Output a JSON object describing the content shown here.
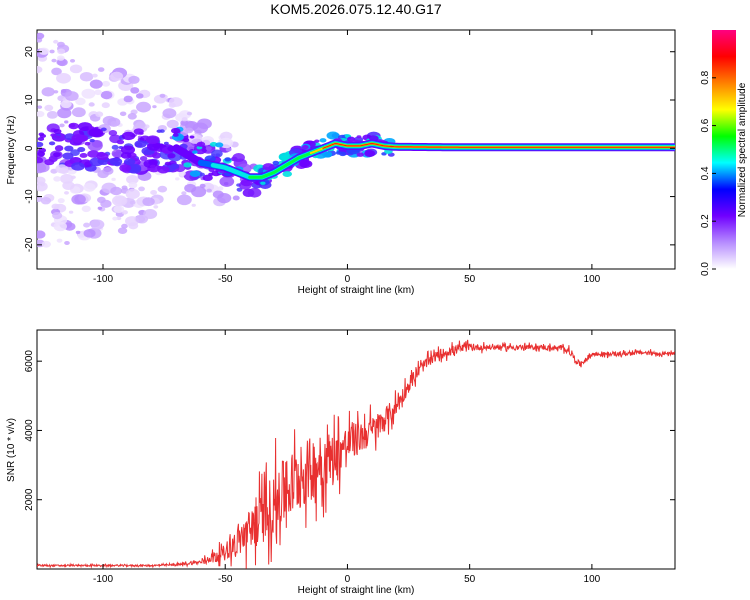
{
  "title": "KOM5.2026.075.12.40.G17",
  "chart_data": [
    {
      "type": "heatmap",
      "xlabel": "Height of straight line (km)",
      "ylabel": "Frequency (Hz)",
      "xlim": [
        -127,
        134
      ],
      "ylim": [
        -25,
        24.5
      ],
      "xticks": [
        -100,
        -50,
        0,
        50,
        100
      ],
      "yticks": [
        -20,
        -10,
        0,
        10,
        20
      ],
      "grid": false,
      "colorbar": {
        "label": "Normalized spectral amplitude",
        "range": [
          0,
          1
        ],
        "ticks": [
          "0.0",
          "0.2",
          "0.4",
          "0.6",
          "0.8"
        ],
        "colors": [
          "#ffffff",
          "#b68cff",
          "#7000ff",
          "#0000ff",
          "#00ffff",
          "#00ff00",
          "#ffff00",
          "#ff8000",
          "#ff0000",
          "#ff0080"
        ]
      },
      "ridge": {
        "x": [
          -127,
          -110,
          -90,
          -70,
          -60,
          -50,
          -45,
          -40,
          -35,
          -30,
          -25,
          -20,
          -15,
          -10,
          -5,
          0,
          5,
          10,
          15,
          20,
          50,
          100,
          134
        ],
        "y": [
          0,
          0.5,
          -1,
          0,
          -3,
          -4,
          -5,
          -6,
          -6,
          -5,
          -3.5,
          -2,
          -1,
          0,
          1,
          0.5,
          0.5,
          1,
          0.5,
          0.3,
          0.2,
          0.2,
          0.2
        ]
      }
    },
    {
      "type": "line",
      "xlabel": "Height of straight line (km)",
      "ylabel": "SNR (10 * v/v)",
      "xlim": [
        -127,
        134
      ],
      "ylim": [
        0,
        6900
      ],
      "xticks": [
        -100,
        -50,
        0,
        50,
        100
      ],
      "yticks": [
        2000,
        4000,
        6000
      ],
      "grid": false,
      "series": [
        {
          "color": "#e83030",
          "x": [
            -127,
            -100,
            -80,
            -70,
            -60,
            -55,
            -50,
            -45,
            -40,
            -35,
            -30,
            -25,
            -20,
            -15,
            -10,
            -5,
            0,
            5,
            10,
            15,
            20,
            25,
            30,
            35,
            40,
            45,
            50,
            60,
            70,
            80,
            90,
            95,
            100,
            110,
            120,
            134
          ],
          "y": [
            100,
            100,
            100,
            120,
            200,
            350,
            500,
            800,
            1100,
            1500,
            1900,
            2300,
            2600,
            2900,
            3100,
            3300,
            3600,
            3800,
            4000,
            4300,
            4700,
            5300,
            5800,
            6100,
            6250,
            6350,
            6400,
            6400,
            6400,
            6400,
            6350,
            5900,
            6200,
            6200,
            6250,
            6200
          ],
          "spread": [
            30,
            30,
            30,
            40,
            80,
            200,
            300,
            600,
            900,
            1100,
            1300,
            1400,
            1400,
            1300,
            1200,
            1000,
            800,
            700,
            600,
            500,
            400,
            300,
            250,
            200,
            200,
            200,
            150,
            100,
            100,
            100,
            120,
            120,
            100,
            80,
            80,
            80
          ]
        }
      ]
    }
  ]
}
